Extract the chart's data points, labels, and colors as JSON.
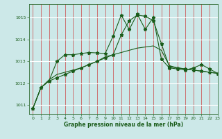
{
  "title": "Graphe pression niveau de la mer (hPa)",
  "bg_color": "#cce8e8",
  "line_color": "#1a5c1a",
  "xlim": [
    -0.5,
    23
  ],
  "ylim": [
    1010.6,
    1015.6
  ],
  "yticks": [
    1011,
    1012,
    1013,
    1014,
    1015
  ],
  "xticks": [
    0,
    1,
    2,
    3,
    4,
    5,
    6,
    7,
    8,
    9,
    10,
    11,
    12,
    13,
    14,
    15,
    16,
    17,
    18,
    19,
    20,
    21,
    22,
    23
  ],
  "series_spiky": [
    1010.85,
    1011.8,
    1012.1,
    1013.0,
    1013.3,
    1013.3,
    1013.35,
    1013.4,
    1013.38,
    1013.35,
    1014.15,
    1015.1,
    1014.45,
    1015.15,
    1014.45,
    1015.0,
    1013.1,
    1012.7,
    1012.65,
    1012.6,
    1012.7,
    1012.85,
    1012.65,
    1012.45
  ],
  "series_smooth": [
    1010.85,
    1011.8,
    1012.1,
    1012.25,
    1012.4,
    1012.55,
    1012.7,
    1012.85,
    1013.0,
    1013.15,
    1013.3,
    1014.2,
    1014.85,
    1015.1,
    1015.05,
    1014.85,
    1013.8,
    1012.75,
    1012.7,
    1012.65,
    1012.6,
    1012.55,
    1012.5,
    1012.45
  ],
  "series_mid": [
    1010.85,
    1011.8,
    1012.15,
    1012.4,
    1012.5,
    1012.6,
    1012.7,
    1012.85,
    1013.0,
    1013.2,
    1013.3,
    1013.4,
    1013.5,
    1013.6,
    1013.65,
    1013.7,
    1013.5,
    1012.8,
    1012.7,
    1012.65,
    1012.6,
    1012.55,
    1012.5,
    1012.45
  ]
}
